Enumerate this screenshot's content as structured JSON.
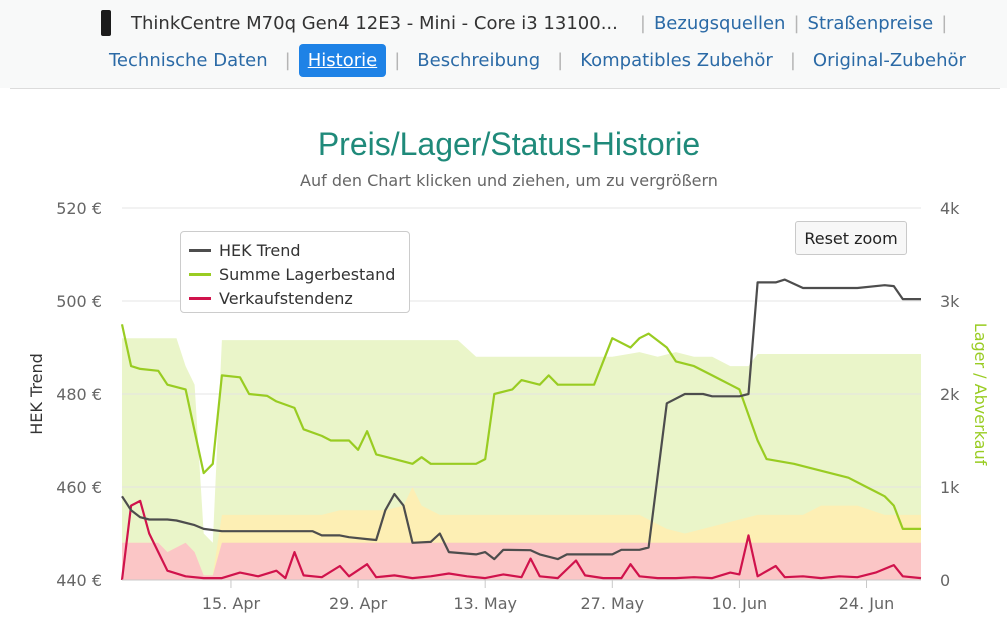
{
  "nav": {
    "product_title": "ThinkCentre M70q Gen4 12E3 - Mini - Core i3 13100...",
    "links": [
      "Bezugsquellen",
      "Straßenpreise"
    ],
    "tabs": [
      {
        "label": "Technische Daten",
        "active": false
      },
      {
        "label": "Historie",
        "active": true
      },
      {
        "label": "Beschreibung",
        "active": false
      },
      {
        "label": "Kompatibles Zubehör",
        "active": false
      },
      {
        "label": "Original-Zubehör",
        "active": false
      }
    ]
  },
  "reset_zoom_label": "Reset zoom",
  "colors": {
    "trend": "#4d4d4d",
    "stock": "#99cc22",
    "sales": "#d0134c",
    "band_green": "#eaf5c9",
    "band_yellow": "#fdefb4",
    "band_red": "#fbc6c6",
    "title": "#1f8a7a"
  },
  "chart_data": {
    "type": "line",
    "title": "Preis/Lager/Status-Historie",
    "subtitle": "Auf den Chart klicken und ziehen, um zu vergrößern",
    "ylabel": "HEK Trend",
    "y2label": "Lager / Abverkauf",
    "ylim": [
      440,
      520
    ],
    "y2lim": [
      0,
      4000
    ],
    "y_ticks": [
      "520 €",
      "500 €",
      "480 €",
      "460 €",
      "440 €"
    ],
    "y2_ticks": [
      "4k",
      "3k",
      "2k",
      "1k",
      "0"
    ],
    "x_ticks": [
      "15. Apr",
      "29. Apr",
      "13. May",
      "27. May",
      "10. Jun",
      "24. Jun"
    ],
    "x_domain": [
      "2023-04-03",
      "2023-06-30"
    ],
    "legend": [
      "HEK Trend",
      "Summe Lagerbestand",
      "Verkaufstendenz"
    ],
    "legend_position": "top-left",
    "grid": true,
    "series": [
      {
        "name": "HEK Trend",
        "axis": "left",
        "points": [
          [
            "2023-04-03",
            458
          ],
          [
            "2023-04-04",
            455
          ],
          [
            "2023-04-05",
            453.5
          ],
          [
            "2023-04-06",
            453
          ],
          [
            "2023-04-08",
            453
          ],
          [
            "2023-04-09",
            452.8
          ],
          [
            "2023-04-11",
            451.8
          ],
          [
            "2023-04-12",
            451
          ],
          [
            "2023-04-14",
            450.5
          ],
          [
            "2023-04-18",
            450.5
          ],
          [
            "2023-04-21",
            450.5
          ],
          [
            "2023-04-24",
            450.5
          ],
          [
            "2023-04-25",
            449.6
          ],
          [
            "2023-04-27",
            449.6
          ],
          [
            "2023-04-28",
            449.2
          ],
          [
            "2023-04-30",
            448.8
          ],
          [
            "2023-05-01",
            448.6
          ],
          [
            "2023-05-02",
            455
          ],
          [
            "2023-05-03",
            458.5
          ],
          [
            "2023-05-04",
            456
          ],
          [
            "2023-05-05",
            448
          ],
          [
            "2023-05-07",
            448.2
          ],
          [
            "2023-05-08",
            450
          ],
          [
            "2023-05-09",
            446
          ],
          [
            "2023-05-12",
            445.5
          ],
          [
            "2023-05-13",
            446
          ],
          [
            "2023-05-14",
            444.5
          ],
          [
            "2023-05-15",
            446.5
          ],
          [
            "2023-05-18",
            446.4
          ],
          [
            "2023-05-19",
            445.5
          ],
          [
            "2023-05-21",
            444.5
          ],
          [
            "2023-05-22",
            445.5
          ],
          [
            "2023-05-25",
            445.5
          ],
          [
            "2023-05-27",
            445.5
          ],
          [
            "2023-05-28",
            446.5
          ],
          [
            "2023-05-30",
            446.5
          ],
          [
            "2023-05-31",
            447
          ],
          [
            "2023-06-02",
            478
          ],
          [
            "2023-06-04",
            480
          ],
          [
            "2023-06-06",
            480
          ],
          [
            "2023-06-07",
            479.5
          ],
          [
            "2023-06-10",
            479.5
          ],
          [
            "2023-06-11",
            480
          ],
          [
            "2023-06-12",
            504
          ],
          [
            "2023-06-14",
            504
          ],
          [
            "2023-06-15",
            504.6
          ],
          [
            "2023-06-17",
            502.8
          ],
          [
            "2023-06-20",
            502.8
          ],
          [
            "2023-06-23",
            502.8
          ],
          [
            "2023-06-26",
            503.4
          ],
          [
            "2023-06-27",
            503.2
          ],
          [
            "2023-06-28",
            500.4
          ],
          [
            "2023-06-30",
            500.4
          ]
        ]
      },
      {
        "name": "Summe Lagerbestand",
        "axis": "right",
        "points": [
          [
            "2023-04-03",
            2750
          ],
          [
            "2023-04-04",
            2300
          ],
          [
            "2023-04-05",
            2270
          ],
          [
            "2023-04-07",
            2250
          ],
          [
            "2023-04-08",
            2100
          ],
          [
            "2023-04-10",
            2050
          ],
          [
            "2023-04-12",
            1150
          ],
          [
            "2023-04-13",
            1250
          ],
          [
            "2023-04-14",
            2200
          ],
          [
            "2023-04-16",
            2180
          ],
          [
            "2023-04-17",
            2000
          ],
          [
            "2023-04-19",
            1980
          ],
          [
            "2023-04-20",
            1920
          ],
          [
            "2023-04-22",
            1850
          ],
          [
            "2023-04-23",
            1620
          ],
          [
            "2023-04-25",
            1550
          ],
          [
            "2023-04-26",
            1500
          ],
          [
            "2023-04-28",
            1500
          ],
          [
            "2023-04-29",
            1400
          ],
          [
            "2023-04-30",
            1600
          ],
          [
            "2023-05-01",
            1350
          ],
          [
            "2023-05-03",
            1300
          ],
          [
            "2023-05-05",
            1250
          ],
          [
            "2023-05-06",
            1320
          ],
          [
            "2023-05-07",
            1250
          ],
          [
            "2023-05-09",
            1250
          ],
          [
            "2023-05-11",
            1250
          ],
          [
            "2023-05-12",
            1250
          ],
          [
            "2023-05-13",
            1300
          ],
          [
            "2023-05-14",
            2000
          ],
          [
            "2023-05-16",
            2050
          ],
          [
            "2023-05-17",
            2150
          ],
          [
            "2023-05-19",
            2100
          ],
          [
            "2023-05-20",
            2200
          ],
          [
            "2023-05-21",
            2100
          ],
          [
            "2023-05-25",
            2100
          ],
          [
            "2023-05-27",
            2600
          ],
          [
            "2023-05-29",
            2500
          ],
          [
            "2023-05-30",
            2600
          ],
          [
            "2023-05-31",
            2650
          ],
          [
            "2023-06-02",
            2500
          ],
          [
            "2023-06-03",
            2350
          ],
          [
            "2023-06-05",
            2300
          ],
          [
            "2023-06-07",
            2200
          ],
          [
            "2023-06-09",
            2100
          ],
          [
            "2023-06-10",
            2050
          ],
          [
            "2023-06-12",
            1500
          ],
          [
            "2023-06-13",
            1300
          ],
          [
            "2023-06-16",
            1250
          ],
          [
            "2023-06-18",
            1200
          ],
          [
            "2023-06-22",
            1100
          ],
          [
            "2023-06-24",
            1000
          ],
          [
            "2023-06-25",
            950
          ],
          [
            "2023-06-26",
            900
          ],
          [
            "2023-06-27",
            800
          ],
          [
            "2023-06-28",
            550
          ],
          [
            "2023-06-30",
            550
          ]
        ]
      },
      {
        "name": "Verkaufstendenz",
        "axis": "right",
        "points": [
          [
            "2023-04-03",
            0
          ],
          [
            "2023-04-04",
            800
          ],
          [
            "2023-04-05",
            850
          ],
          [
            "2023-04-06",
            500
          ],
          [
            "2023-04-07",
            300
          ],
          [
            "2023-04-08",
            100
          ],
          [
            "2023-04-10",
            40
          ],
          [
            "2023-04-12",
            20
          ],
          [
            "2023-04-14",
            20
          ],
          [
            "2023-04-16",
            80
          ],
          [
            "2023-04-18",
            40
          ],
          [
            "2023-04-20",
            100
          ],
          [
            "2023-04-21",
            20
          ],
          [
            "2023-04-22",
            300
          ],
          [
            "2023-04-23",
            50
          ],
          [
            "2023-04-25",
            30
          ],
          [
            "2023-04-27",
            150
          ],
          [
            "2023-04-28",
            40
          ],
          [
            "2023-04-30",
            170
          ],
          [
            "2023-05-01",
            30
          ],
          [
            "2023-05-03",
            50
          ],
          [
            "2023-05-05",
            20
          ],
          [
            "2023-05-07",
            40
          ],
          [
            "2023-05-09",
            70
          ],
          [
            "2023-05-11",
            40
          ],
          [
            "2023-05-13",
            20
          ],
          [
            "2023-05-15",
            60
          ],
          [
            "2023-05-17",
            30
          ],
          [
            "2023-05-18",
            230
          ],
          [
            "2023-05-19",
            40
          ],
          [
            "2023-05-21",
            20
          ],
          [
            "2023-05-23",
            210
          ],
          [
            "2023-05-24",
            50
          ],
          [
            "2023-05-26",
            20
          ],
          [
            "2023-05-28",
            20
          ],
          [
            "2023-05-29",
            170
          ],
          [
            "2023-05-30",
            40
          ],
          [
            "2023-06-01",
            20
          ],
          [
            "2023-06-03",
            20
          ],
          [
            "2023-06-05",
            30
          ],
          [
            "2023-06-07",
            20
          ],
          [
            "2023-06-09",
            80
          ],
          [
            "2023-06-10",
            60
          ],
          [
            "2023-06-11",
            480
          ],
          [
            "2023-06-12",
            40
          ],
          [
            "2023-06-14",
            150
          ],
          [
            "2023-06-15",
            30
          ],
          [
            "2023-06-17",
            40
          ],
          [
            "2023-06-19",
            20
          ],
          [
            "2023-06-21",
            40
          ],
          [
            "2023-06-23",
            30
          ],
          [
            "2023-06-25",
            80
          ],
          [
            "2023-06-27",
            160
          ],
          [
            "2023-06-28",
            40
          ],
          [
            "2023-06-30",
            20
          ]
        ]
      }
    ],
    "status_bands": {
      "axis": "right",
      "green": [
        [
          "2023-04-03",
          2600
        ],
        [
          "2023-04-05",
          2600
        ],
        [
          "2023-04-06",
          2600
        ],
        [
          "2023-04-07",
          2600
        ],
        [
          "2023-04-08",
          2600
        ],
        [
          "2023-04-09",
          2600
        ],
        [
          "2023-04-10",
          2300
        ],
        [
          "2023-04-11",
          2100
        ],
        [
          "2023-04-12",
          500
        ],
        [
          "2023-04-13",
          400
        ],
        [
          "2023-04-14",
          2580
        ],
        [
          "2023-04-16",
          2580
        ],
        [
          "2023-05-10",
          2580
        ],
        [
          "2023-05-12",
          2400
        ],
        [
          "2023-05-14",
          2400
        ],
        [
          "2023-05-27",
          2400
        ],
        [
          "2023-05-30",
          2450
        ],
        [
          "2023-06-01",
          2400
        ],
        [
          "2023-06-03",
          2450
        ],
        [
          "2023-06-05",
          2400
        ],
        [
          "2023-06-07",
          2400
        ],
        [
          "2023-06-09",
          2300
        ],
        [
          "2023-06-11",
          2300
        ],
        [
          "2023-06-12",
          2430
        ],
        [
          "2023-06-30",
          2430
        ]
      ],
      "yellow": [
        [
          "2023-04-03",
          400
        ],
        [
          "2023-04-07",
          400
        ],
        [
          "2023-04-08",
          300
        ],
        [
          "2023-04-10",
          400
        ],
        [
          "2023-04-11",
          300
        ],
        [
          "2023-04-12",
          50
        ],
        [
          "2023-04-13",
          50
        ],
        [
          "2023-04-14",
          700
        ],
        [
          "2023-04-25",
          700
        ],
        [
          "2023-04-27",
          750
        ],
        [
          "2023-05-02",
          750
        ],
        [
          "2023-05-04",
          800
        ],
        [
          "2023-05-05",
          1000
        ],
        [
          "2023-05-06",
          800
        ],
        [
          "2023-05-08",
          700
        ],
        [
          "2023-05-30",
          700
        ],
        [
          "2023-06-02",
          550
        ],
        [
          "2023-06-04",
          500
        ],
        [
          "2023-06-12",
          700
        ],
        [
          "2023-06-17",
          700
        ],
        [
          "2023-06-19",
          800
        ],
        [
          "2023-06-23",
          800
        ],
        [
          "2023-06-26",
          700
        ],
        [
          "2023-06-30",
          700
        ]
      ],
      "red": [
        [
          "2023-04-03",
          400
        ],
        [
          "2023-04-07",
          400
        ],
        [
          "2023-04-08",
          300
        ],
        [
          "2023-04-10",
          400
        ],
        [
          "2023-04-11",
          300
        ],
        [
          "2023-04-12",
          50
        ],
        [
          "2023-04-13",
          50
        ],
        [
          "2023-04-14",
          400
        ],
        [
          "2023-06-30",
          400
        ]
      ]
    }
  }
}
